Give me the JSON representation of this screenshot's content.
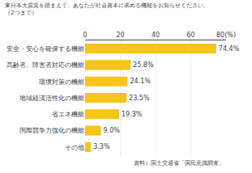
{
  "chart_data": {
    "type": "bar",
    "title": "東日本大震災を踏まえて、あなたが社会資本に求める機能をお知らせください。",
    "subtitle": "（2つまで）",
    "categories": [
      "安全・安心を確保する機能",
      "高齢者、障害者対応の機能",
      "環境対策の機能",
      "地域経済活性化の機能",
      "省エネ機能",
      "国際競争力強化の機能",
      "その他"
    ],
    "values": [
      74.4,
      25.8,
      24.1,
      23.5,
      19.3,
      9.0,
      3.3
    ],
    "value_labels": [
      "74.4%",
      "25.8%",
      "24.1%",
      "23.5%",
      "19.3%",
      "9.0%",
      "3.3%"
    ],
    "data_labels": true,
    "color": "#F5C518",
    "orientation": "horizontal",
    "xlim": [
      0,
      80
    ],
    "xticks": [
      0,
      20,
      40,
      60,
      {
        "value": 80,
        "label": "80(%)"
      }
    ],
    "grid": true,
    "annotations": [
      "資料）国土交通省「国民意識調査」"
    ]
  }
}
